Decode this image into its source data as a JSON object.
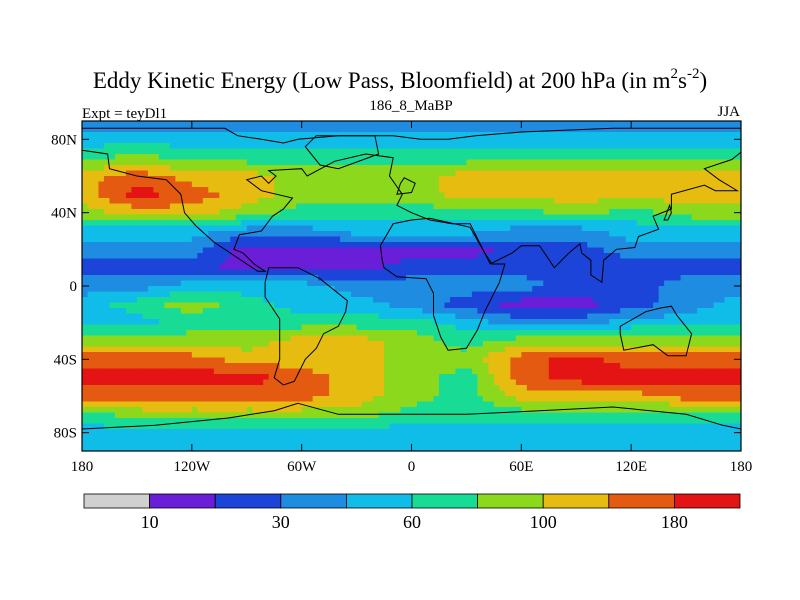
{
  "chart_data": {
    "type": "heatmap",
    "title": "Eddy Kinetic Energy (Low Pass, Bloomfield) at 200 hPa (in m",
    "title_unit_sup1": "2",
    "title_unit_mid": "s",
    "title_unit_sup2": "-2",
    "title_unit_close": ")",
    "subtitle_left": "Expt = teyDl1",
    "subtitle_center": "186_8_MaBP",
    "subtitle_right": "JJA",
    "xlim": [
      -180,
      180
    ],
    "ylim": [
      -90,
      90
    ],
    "x_ticks": [
      {
        "value": -180,
        "label": "180"
      },
      {
        "value": -120,
        "label": "120W"
      },
      {
        "value": -60,
        "label": "60W"
      },
      {
        "value": 0,
        "label": "0"
      },
      {
        "value": 60,
        "label": "60E"
      },
      {
        "value": 120,
        "label": "120E"
      },
      {
        "value": 180,
        "label": "180"
      }
    ],
    "y_ticks": [
      {
        "value": 80,
        "label": "80N"
      },
      {
        "value": 40,
        "label": "40N"
      },
      {
        "value": 0,
        "label": "0"
      },
      {
        "value": -40,
        "label": "40S"
      },
      {
        "value": -80,
        "label": "80S"
      }
    ],
    "colorbar": {
      "colors": [
        "#d0d0d0",
        "#6a1ed8",
        "#1c44d8",
        "#1e8ce0",
        "#10bce8",
        "#18dc96",
        "#8cd81c",
        "#e6bc10",
        "#e45a10",
        "#e41414"
      ],
      "labels": [
        {
          "after_box": 0,
          "label": "10"
        },
        {
          "after_box": 2,
          "label": "30"
        },
        {
          "after_box": 4,
          "label": "60"
        },
        {
          "after_box": 6,
          "label": "100"
        },
        {
          "after_box": 8,
          "label": "180"
        }
      ]
    },
    "lons": [
      -180,
      -150,
      -120,
      -90,
      -60,
      -30,
      0,
      30,
      60,
      90,
      120,
      150,
      180
    ],
    "lats": [
      90,
      80,
      70,
      60,
      50,
      40,
      30,
      20,
      10,
      0,
      -10,
      -20,
      -30,
      -40,
      -50,
      -60,
      -70,
      -80,
      -90
    ],
    "field": [
      [
        3,
        3,
        3,
        3,
        3,
        3,
        3,
        3,
        3,
        3,
        3,
        3,
        3
      ],
      [
        4,
        4,
        4,
        4,
        4,
        4,
        4,
        4,
        4,
        4,
        4,
        4,
        4
      ],
      [
        5,
        6,
        5,
        5,
        5,
        5,
        5,
        5,
        5,
        5,
        5,
        5,
        5
      ],
      [
        7,
        8,
        7,
        7,
        6,
        6,
        6,
        7,
        7,
        7,
        7,
        7,
        7
      ],
      [
        7,
        9,
        8,
        7,
        6,
        6,
        6,
        7,
        7,
        7,
        7,
        7,
        7
      ],
      [
        6,
        7,
        7,
        6,
        5,
        5,
        5,
        5,
        5,
        6,
        5,
        6,
        6
      ],
      [
        4,
        4,
        4,
        3,
        3,
        4,
        4,
        4,
        3,
        3,
        4,
        4,
        4
      ],
      [
        3,
        3,
        3,
        1,
        1,
        1,
        1,
        1,
        2,
        2,
        3,
        3,
        3
      ],
      [
        2,
        2,
        2,
        1,
        1,
        1,
        2,
        2,
        2,
        2,
        2,
        2,
        2
      ],
      [
        3,
        3,
        4,
        4,
        4,
        3,
        3,
        3,
        3,
        2,
        2,
        3,
        3
      ],
      [
        4,
        5,
        6,
        5,
        4,
        4,
        3,
        2,
        1,
        1,
        2,
        3,
        4
      ],
      [
        4,
        4,
        5,
        5,
        5,
        5,
        5,
        4,
        3,
        3,
        4,
        4,
        4
      ],
      [
        6,
        6,
        6,
        6,
        7,
        7,
        6,
        5,
        6,
        6,
        6,
        6,
        6
      ],
      [
        8,
        8,
        8,
        7,
        7,
        7,
        6,
        6,
        8,
        9,
        8,
        8,
        8
      ],
      [
        9,
        9,
        9,
        9,
        8,
        7,
        6,
        5,
        8,
        9,
        9,
        9,
        9
      ],
      [
        8,
        8,
        8,
        8,
        8,
        7,
        6,
        5,
        7,
        7,
        7,
        8,
        8
      ],
      [
        5,
        6,
        6,
        6,
        6,
        6,
        5,
        5,
        5,
        5,
        5,
        5,
        5
      ],
      [
        4,
        4,
        4,
        4,
        4,
        4,
        4,
        4,
        4,
        4,
        4,
        4,
        4
      ],
      [
        4,
        4,
        4,
        4,
        4,
        4,
        4,
        4,
        4,
        4,
        4,
        4,
        4
      ]
    ],
    "continents": [
      [
        [
          -180,
          86
        ],
        [
          -120,
          86
        ],
        [
          -102,
          86
        ],
        [
          -95,
          82
        ],
        [
          -82,
          80
        ],
        [
          -70,
          78
        ],
        [
          -62,
          80
        ],
        [
          -40,
          82
        ],
        [
          -10,
          82
        ],
        [
          5,
          80
        ],
        [
          20,
          80
        ],
        [
          35,
          82
        ],
        [
          60,
          84
        ],
        [
          110,
          86
        ],
        [
          150,
          86
        ],
        [
          180,
          86
        ],
        [
          180,
          73
        ],
        [
          175,
          69
        ],
        [
          160,
          64
        ],
        [
          168,
          58
        ],
        [
          178,
          52
        ],
        [
          166,
          52
        ],
        [
          160,
          55
        ],
        [
          142,
          50
        ],
        [
          142,
          42
        ],
        [
          132,
          38
        ],
        [
          135,
          31
        ],
        [
          124,
          27
        ],
        [
          122,
          21
        ],
        [
          112,
          20
        ],
        [
          105,
          14
        ],
        [
          104,
          2
        ],
        [
          98,
          6
        ],
        [
          98,
          14
        ],
        [
          93,
          18
        ],
        [
          92,
          23
        ],
        [
          86,
          18
        ],
        [
          78,
          10
        ],
        [
          74,
          16
        ],
        [
          70,
          22
        ],
        [
          60,
          22
        ],
        [
          55,
          18
        ],
        [
          43,
          12
        ],
        [
          32,
          34
        ],
        [
          22,
          34
        ],
        [
          10,
          36
        ],
        [
          0,
          40
        ],
        [
          -8,
          44
        ],
        [
          -5,
          50
        ],
        [
          -12,
          60
        ],
        [
          -10,
          70
        ],
        [
          -25,
          72
        ],
        [
          -42,
          68
        ],
        [
          -57,
          60
        ],
        [
          -60,
          64
        ],
        [
          -78,
          63
        ],
        [
          -74,
          60
        ],
        [
          -78,
          56
        ],
        [
          -82,
          60
        ],
        [
          -90,
          58
        ],
        [
          -82,
          52
        ],
        [
          -65,
          48
        ],
        [
          -70,
          42
        ],
        [
          -76,
          38
        ],
        [
          -82,
          30
        ],
        [
          -94,
          28
        ],
        [
          -97,
          20
        ],
        [
          -92,
          18
        ],
        [
          -86,
          12
        ],
        [
          -80,
          8
        ],
        [
          -84,
          8
        ],
        [
          -96,
          16
        ],
        [
          -108,
          24
        ],
        [
          -118,
          33
        ],
        [
          -124,
          40
        ],
        [
          -126,
          50
        ],
        [
          -134,
          58
        ],
        [
          -150,
          60
        ],
        [
          -165,
          64
        ],
        [
          -166,
          72
        ],
        [
          -180,
          74
        ]
      ],
      [
        [
          -78,
          10
        ],
        [
          -62,
          10
        ],
        [
          -50,
          4
        ],
        [
          -35,
          -8
        ],
        [
          -36,
          -14
        ],
        [
          -40,
          -22
        ],
        [
          -48,
          -26
        ],
        [
          -52,
          -34
        ],
        [
          -58,
          -40
        ],
        [
          -64,
          -52
        ],
        [
          -70,
          -54
        ],
        [
          -75,
          -50
        ],
        [
          -72,
          -40
        ],
        [
          -72,
          -18
        ],
        [
          -80,
          -6
        ],
        [
          -80,
          2
        ]
      ],
      [
        [
          -16,
          14
        ],
        [
          -17,
          22
        ],
        [
          -10,
          34
        ],
        [
          0,
          36
        ],
        [
          10,
          37
        ],
        [
          32,
          32
        ],
        [
          40,
          18
        ],
        [
          44,
          12
        ],
        [
          51,
          12
        ],
        [
          48,
          2
        ],
        [
          40,
          -14
        ],
        [
          36,
          -24
        ],
        [
          30,
          -34
        ],
        [
          20,
          -35
        ],
        [
          16,
          -28
        ],
        [
          12,
          -16
        ],
        [
          12,
          -4
        ],
        [
          8,
          4
        ],
        [
          -8,
          5
        ],
        [
          -15,
          10
        ]
      ],
      [
        [
          114,
          -22
        ],
        [
          128,
          -14
        ],
        [
          136,
          -12
        ],
        [
          142,
          -11
        ],
        [
          145,
          -16
        ],
        [
          153,
          -26
        ],
        [
          150,
          -38
        ],
        [
          140,
          -38
        ],
        [
          132,
          -32
        ],
        [
          116,
          -35
        ],
        [
          114,
          -26
        ]
      ],
      [
        [
          -52,
          82
        ],
        [
          -20,
          82
        ],
        [
          -18,
          72
        ],
        [
          -40,
          64
        ],
        [
          -50,
          66
        ],
        [
          -58,
          76
        ]
      ],
      [
        [
          -62,
          -64
        ],
        [
          -40,
          -70
        ],
        [
          -10,
          -70
        ],
        [
          30,
          -70
        ],
        [
          70,
          -68
        ],
        [
          110,
          -66
        ],
        [
          150,
          -70
        ],
        [
          170,
          -76
        ],
        [
          180,
          -78
        ],
        [
          180,
          -90
        ],
        [
          -180,
          -90
        ],
        [
          -180,
          -78
        ],
        [
          -140,
          -76
        ],
        [
          -100,
          -72
        ],
        [
          -75,
          -68
        ]
      ],
      [
        [
          -8,
          50
        ],
        [
          0,
          51
        ],
        [
          2,
          56
        ],
        [
          -4,
          59
        ],
        [
          -6,
          56
        ]
      ],
      [
        [
          140,
          36
        ],
        [
          142,
          40
        ],
        [
          141,
          44
        ],
        [
          138,
          36
        ]
      ]
    ]
  }
}
